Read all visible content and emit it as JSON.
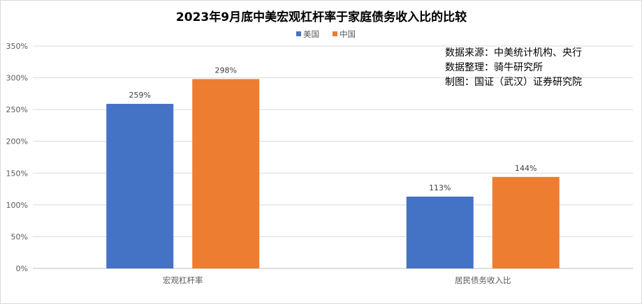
{
  "chart_data": {
    "type": "bar",
    "title": "2023年9月底中美宏观杠杆率于家庭债务收入比的比较",
    "categories": [
      "宏观杠杆率",
      "居民债务收入比"
    ],
    "series": [
      {
        "name": "美国",
        "values": [
          259,
          113
        ],
        "labels": [
          "259%",
          "113%"
        ],
        "color": "#4472C4"
      },
      {
        "name": "中国",
        "values": [
          298,
          144
        ],
        "labels": [
          "298%",
          "144%"
        ],
        "color": "#ED7D31"
      }
    ],
    "ylim": [
      0,
      350
    ],
    "yticks": [
      0,
      50,
      100,
      150,
      200,
      250,
      300,
      350
    ],
    "ytick_labels": [
      "0%",
      "50%",
      "100%",
      "150%",
      "200%",
      "250%",
      "300%",
      "350%"
    ],
    "grid": true,
    "legend_position": "top-center"
  },
  "annotation": {
    "lines": [
      "数据来源：中美统计机构、央行",
      "数据整理：骑牛研究所",
      "制图：国证（武汉）证券研究院"
    ]
  }
}
